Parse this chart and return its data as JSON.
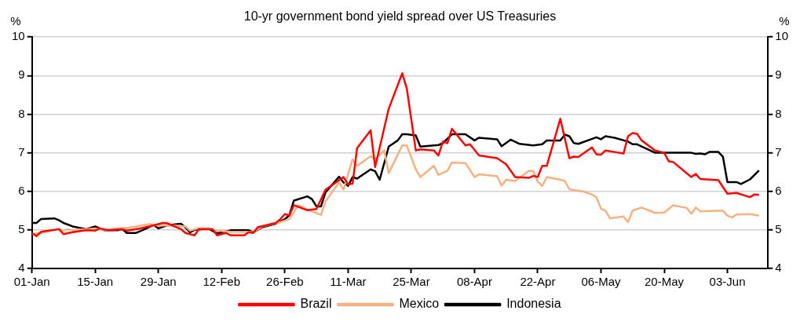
{
  "chart_data": {
    "type": "line",
    "title": "10-yr government bond yield spread over US Treasuries",
    "ylabel": "%",
    "y2label": "%",
    "xlim": [
      "--01-01",
      "--06-12"
    ],
    "xticks": [
      {
        "value": "--01-01",
        "label": "01-Jan"
      },
      {
        "value": "--01-15",
        "label": "15-Jan"
      },
      {
        "value": "--01-29",
        "label": "29-Jan"
      },
      {
        "value": "--02-12",
        "label": "12-Feb"
      },
      {
        "value": "--02-26",
        "label": "26-Feb"
      },
      {
        "value": "--03-11",
        "label": "11-Mar"
      },
      {
        "value": "--03-25",
        "label": "25-Mar"
      },
      {
        "value": "--04-08",
        "label": "08-Apr"
      },
      {
        "value": "--04-22",
        "label": "22-Apr"
      },
      {
        "value": "--05-06",
        "label": "06-May"
      },
      {
        "value": "--05-20",
        "label": "20-May"
      },
      {
        "value": "--06-03",
        "label": "03-Jun"
      }
    ],
    "ylim": [
      4,
      10
    ],
    "yticks": [
      4,
      5,
      6,
      7,
      8,
      9,
      10
    ],
    "y2lim": [
      4,
      10
    ],
    "y2ticks": [
      4,
      5,
      6,
      7,
      8,
      9,
      10
    ],
    "grid": "y",
    "legend": "bottom",
    "marker": "none",
    "line_style": "solid",
    "series": [
      {
        "name": "Brazil",
        "color": "#ff0000",
        "x": [
          "--01-01",
          "--01-02",
          "--01-03",
          "--01-07",
          "--01-08",
          "--01-10",
          "--01-13",
          "--01-15",
          "--01-16",
          "--01-18",
          "--01-21",
          "--01-22",
          "--01-25",
          "--01-28",
          "--01-30",
          "--01-31",
          "--02-03",
          "--02-04",
          "--02-06",
          "--02-07",
          "--02-10",
          "--02-11",
          "--02-13",
          "--02-14",
          "--02-17",
          "--02-18",
          "--02-19",
          "--02-20",
          "--02-24",
          "--02-25",
          "--02-26",
          "--02-27",
          "--02-28",
          "--03-02",
          "--03-04",
          "--03-06",
          "--03-10",
          "--03-11",
          "--03-12",
          "--03-13",
          "--03-16",
          "--03-17",
          "--03-20",
          "--03-23",
          "--03-24",
          "--03-26",
          "--03-27",
          "--03-30",
          "--03-31",
          "--04-01",
          "--04-02",
          "--04-03",
          "--04-06",
          "--04-07",
          "--04-09",
          "--04-13",
          "--04-15",
          "--04-17",
          "--04-20",
          "--04-21",
          "--04-22",
          "--04-23",
          "--04-24",
          "--04-27",
          "--04-29",
          "--04-30",
          "--05-01",
          "--05-04",
          "--05-05",
          "--05-06",
          "--05-07",
          "--05-09",
          "--05-11",
          "--05-12",
          "--05-13",
          "--05-14",
          "--05-15",
          "--05-18",
          "--05-20",
          "--05-21",
          "--05-22",
          "--05-26",
          "--05-27",
          "--05-28",
          "--06-01",
          "--06-03",
          "--06-05",
          "--06-08",
          "--06-09",
          "--06-10"
        ],
        "values": [
          4.92,
          4.84,
          4.95,
          5.02,
          4.89,
          4.94,
          4.99,
          4.98,
          5.04,
          4.99,
          5.02,
          4.98,
          5.04,
          5.12,
          5.18,
          5.17,
          5.02,
          4.92,
          4.86,
          5.02,
          5.02,
          4.86,
          4.92,
          4.86,
          4.86,
          4.94,
          4.92,
          5.07,
          5.18,
          5.28,
          5.41,
          5.38,
          5.64,
          5.51,
          5.54,
          6.04,
          6.37,
          6.18,
          6.2,
          7.12,
          7.58,
          6.63,
          8.14,
          9.06,
          8.67,
          7.06,
          7.09,
          7.06,
          6.93,
          7.29,
          7.25,
          7.62,
          7.19,
          7.22,
          6.93,
          6.86,
          6.7,
          6.37,
          6.35,
          6.4,
          6.37,
          6.66,
          6.66,
          7.88,
          6.86,
          6.9,
          6.89,
          7.14,
          6.96,
          6.95,
          7.06,
          7.02,
          6.98,
          7.43,
          7.51,
          7.49,
          7.32,
          7.06,
          7.0,
          6.78,
          6.76,
          6.37,
          6.45,
          6.32,
          6.29,
          5.94,
          5.96,
          5.85,
          5.92,
          5.91
        ]
      },
      {
        "name": "Mexico",
        "color": "#f4b183",
        "x": [
          "--01-01",
          "--01-03",
          "--01-07",
          "--01-08",
          "--01-09",
          "--01-10",
          "--01-13",
          "--01-15",
          "--01-17",
          "--01-21",
          "--01-22",
          "--01-24",
          "--01-27",
          "--01-29",
          "--02-01",
          "--02-04",
          "--02-05",
          "--02-07",
          "--02-09",
          "--02-11",
          "--02-14",
          "--02-18",
          "--02-19",
          "--02-21",
          "--02-25",
          "--02-27",
          "--02-29",
          "--03-03",
          "--03-05",
          "--03-06",
          "--03-09",
          "--03-10",
          "--03-12",
          "--03-13",
          "--03-16",
          "--03-17",
          "--03-19",
          "--03-20",
          "--03-23",
          "--03-24",
          "--03-26",
          "--03-27",
          "--03-30",
          "--03-31",
          "--04-02",
          "--04-03",
          "--04-06",
          "--04-08",
          "--04-09",
          "--04-13",
          "--04-14",
          "--04-15",
          "--04-17",
          "--04-20",
          "--04-21",
          "--04-22",
          "--04-23",
          "--04-24",
          "--04-27",
          "--04-28",
          "--04-29",
          "--05-02",
          "--05-04",
          "--05-05",
          "--05-06",
          "--05-07",
          "--05-08",
          "--05-11",
          "--05-12",
          "--05-13",
          "--05-15",
          "--05-18",
          "--05-20",
          "--05-22",
          "--05-25",
          "--05-26",
          "--05-27",
          "--05-28",
          "--06-02",
          "--06-03",
          "--06-04",
          "--06-05",
          "--06-08",
          "--06-10"
        ],
        "values": [
          4.89,
          4.92,
          5.02,
          4.98,
          5.02,
          4.99,
          5.02,
          5.04,
          5.0,
          5.05,
          5.05,
          5.09,
          5.15,
          5.11,
          5.12,
          5.09,
          4.98,
          5.05,
          5.04,
          4.98,
          4.95,
          4.95,
          4.94,
          5.09,
          5.2,
          5.28,
          5.64,
          5.48,
          5.39,
          5.74,
          6.23,
          6.05,
          6.83,
          6.66,
          6.91,
          6.83,
          7.06,
          6.47,
          7.19,
          7.19,
          6.57,
          6.37,
          6.66,
          6.43,
          6.53,
          6.75,
          6.73,
          6.37,
          6.44,
          6.39,
          6.15,
          6.3,
          6.27,
          6.53,
          6.53,
          6.25,
          6.14,
          6.37,
          6.3,
          6.27,
          6.05,
          6.0,
          5.92,
          5.84,
          5.55,
          5.5,
          5.3,
          5.35,
          5.2,
          5.5,
          5.58,
          5.44,
          5.45,
          5.64,
          5.57,
          5.42,
          5.58,
          5.48,
          5.5,
          5.37,
          5.32,
          5.4,
          5.41,
          5.37
        ]
      },
      {
        "name": "Indonesia",
        "color": "#000000",
        "x": [
          "--01-01",
          "--01-02",
          "--01-03",
          "--01-06",
          "--01-07",
          "--01-08",
          "--01-10",
          "--01-13",
          "--01-15",
          "--01-17",
          "--01-20",
          "--01-21",
          "--01-22",
          "--01-24",
          "--01-26",
          "--01-28",
          "--01-29",
          "--01-31",
          "--02-03",
          "--02-04",
          "--02-05",
          "--02-06",
          "--02-09",
          "--02-11",
          "--02-14",
          "--02-18",
          "--02-19",
          "--02-21",
          "--02-24",
          "--02-26",
          "--02-27",
          "--02-28",
          "--03-02",
          "--03-03",
          "--03-04",
          "--03-05",
          "--03-06",
          "--03-09",
          "--03-10",
          "--03-11",
          "--03-12",
          "--03-13",
          "--03-16",
          "--03-17",
          "--03-18",
          "--03-20",
          "--03-22",
          "--03-23",
          "--03-24",
          "--03-26",
          "--03-27",
          "--03-31",
          "--04-01",
          "--04-03",
          "--04-06",
          "--04-08",
          "--04-09",
          "--04-13",
          "--04-14",
          "--04-16",
          "--04-18",
          "--04-21",
          "--04-23",
          "--04-24",
          "--04-27",
          "--04-28",
          "--04-29",
          "--04-30",
          "--05-01",
          "--05-05",
          "--05-06",
          "--05-07",
          "--05-09",
          "--05-12",
          "--05-13",
          "--05-14",
          "--05-18",
          "--05-20",
          "--05-26",
          "--05-27",
          "--05-28",
          "--05-29",
          "--05-30",
          "--06-01",
          "--06-02",
          "--06-03",
          "--06-05",
          "--06-06",
          "--06-08",
          "--06-10"
        ],
        "values": [
          5.18,
          5.18,
          5.28,
          5.3,
          5.25,
          5.18,
          5.09,
          5.02,
          5.09,
          4.99,
          4.99,
          5.02,
          4.92,
          4.92,
          5.02,
          5.13,
          5.04,
          5.12,
          5.16,
          5.06,
          4.94,
          5.0,
          5.04,
          4.91,
          4.99,
          4.99,
          4.94,
          5.07,
          5.16,
          5.28,
          5.38,
          5.76,
          5.87,
          5.8,
          5.61,
          5.61,
          5.97,
          6.38,
          6.23,
          6.14,
          6.37,
          6.33,
          6.57,
          6.52,
          6.3,
          7.16,
          7.32,
          7.48,
          7.48,
          7.45,
          7.16,
          7.2,
          7.25,
          7.48,
          7.48,
          7.32,
          7.39,
          7.35,
          7.17,
          7.34,
          7.23,
          7.19,
          7.22,
          7.32,
          7.32,
          7.47,
          7.43,
          7.25,
          7.23,
          7.4,
          7.35,
          7.43,
          7.39,
          7.29,
          7.22,
          7.22,
          7.0,
          7.0,
          7.0,
          6.97,
          6.98,
          6.96,
          7.02,
          7.02,
          6.9,
          6.24,
          6.24,
          6.19,
          6.31,
          6.54
        ]
      }
    ]
  }
}
